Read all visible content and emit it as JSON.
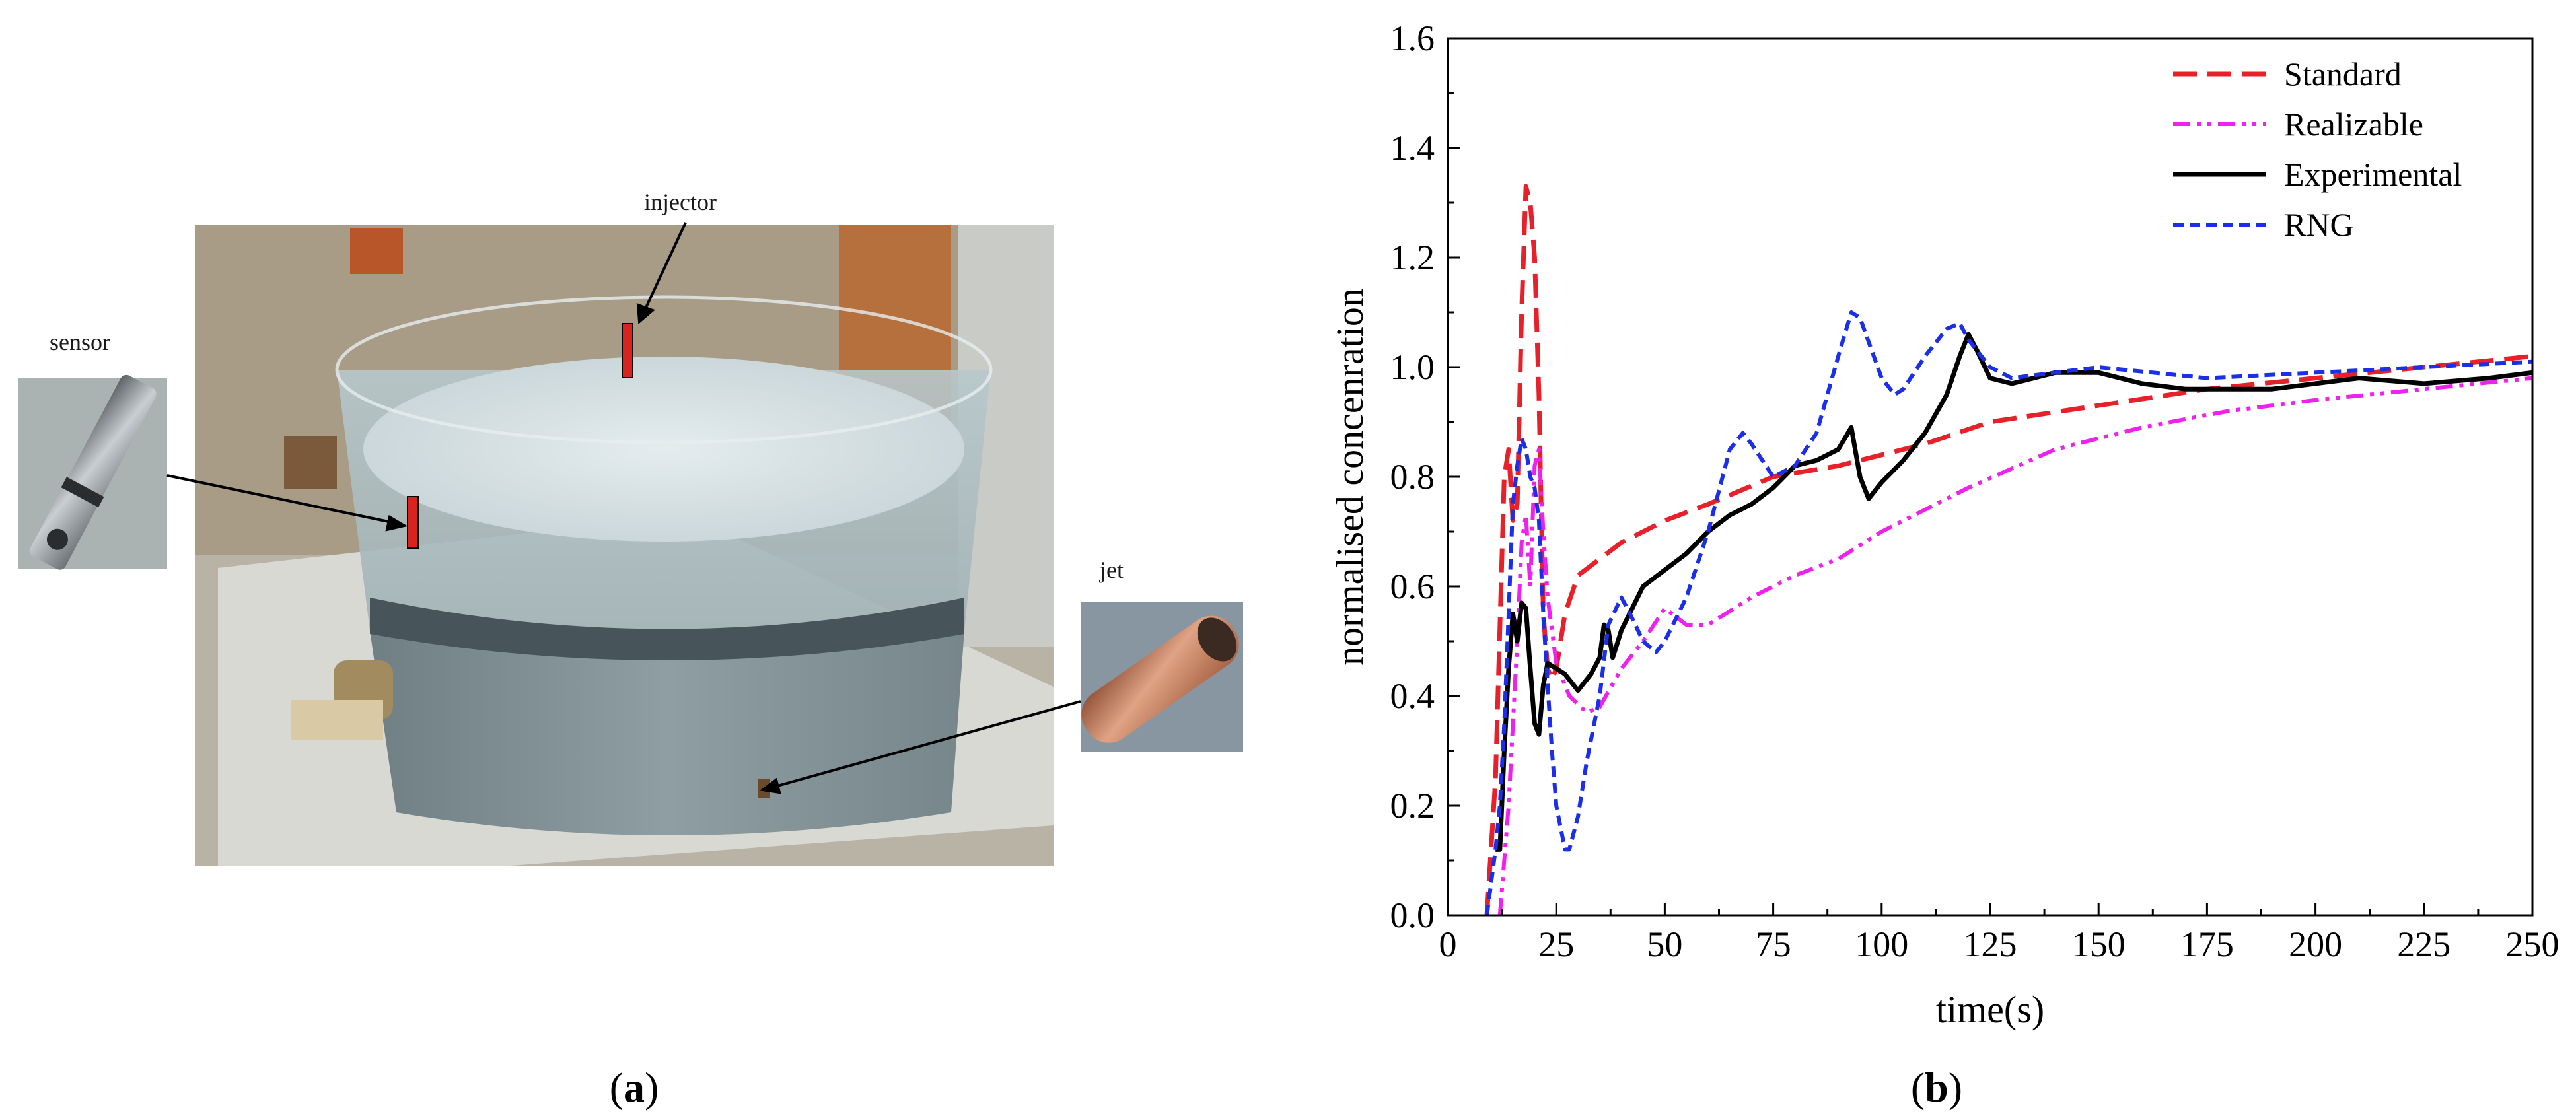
{
  "panel_a": {
    "caption_open": "(",
    "caption_letter": "a",
    "caption_close": ")",
    "labels": {
      "injector": "injector",
      "sensor": "sensor",
      "jet": "jet"
    }
  },
  "panel_b": {
    "caption_open": "(",
    "caption_letter": "b",
    "caption_close": ")"
  },
  "colors": {
    "standard": "#e8202a",
    "realizable": "#ee21ee",
    "experimental": "#000000",
    "rng": "#1c2fe8",
    "marker_red": "#d9231d"
  },
  "chart_data": {
    "type": "line",
    "xlabel": "time(s)",
    "ylabel": "normalised concenration",
    "xlim": [
      0,
      250
    ],
    "ylim": [
      0,
      1.6
    ],
    "xticks": [
      0,
      25,
      50,
      75,
      100,
      125,
      150,
      175,
      200,
      225,
      250
    ],
    "yticks": [
      0.0,
      0.2,
      0.4,
      0.6,
      0.8,
      1.0,
      1.2,
      1.4,
      1.6
    ],
    "ytick_labels": [
      "0.0",
      "0.2",
      "0.4",
      "0.6",
      "0.8",
      "1.0",
      "1.2",
      "1.4",
      "1.6"
    ],
    "grid": false,
    "legend_position": "top-right",
    "series": [
      {
        "name": "Standard",
        "style": "dashed",
        "x": [
          9,
          11,
          13,
          14,
          15,
          16,
          17,
          18,
          19,
          20,
          21,
          22,
          23,
          24,
          25,
          27,
          30,
          35,
          40,
          45,
          50,
          60,
          75,
          90,
          100,
          110,
          125,
          150,
          175,
          200,
          225,
          250
        ],
        "y": [
          0.0,
          0.25,
          0.8,
          0.85,
          0.72,
          0.75,
          1.1,
          1.33,
          1.3,
          1.2,
          0.95,
          0.55,
          0.45,
          0.43,
          0.45,
          0.55,
          0.62,
          0.65,
          0.68,
          0.7,
          0.72,
          0.75,
          0.8,
          0.82,
          0.84,
          0.86,
          0.9,
          0.93,
          0.96,
          0.98,
          1.0,
          1.02
        ]
      },
      {
        "name": "Realizable",
        "style": "dash-dot-dot",
        "x": [
          12,
          14,
          16,
          17,
          18,
          19,
          20,
          21,
          22,
          23,
          25,
          28,
          32,
          35,
          40,
          45,
          50,
          55,
          60,
          70,
          80,
          90,
          100,
          120,
          140,
          160,
          180,
          200,
          225,
          250
        ],
        "y": [
          0.0,
          0.2,
          0.5,
          0.68,
          0.73,
          0.6,
          0.82,
          0.85,
          0.7,
          0.58,
          0.46,
          0.4,
          0.37,
          0.38,
          0.45,
          0.5,
          0.56,
          0.53,
          0.53,
          0.58,
          0.62,
          0.65,
          0.7,
          0.78,
          0.85,
          0.89,
          0.92,
          0.94,
          0.96,
          0.98
        ]
      },
      {
        "name": "Experimental",
        "style": "solid",
        "x": [
          11,
          12,
          13,
          14,
          15,
          16,
          17,
          18,
          19,
          20,
          21,
          22,
          23,
          25,
          27,
          30,
          33,
          35,
          36,
          37,
          38,
          40,
          45,
          50,
          55,
          60,
          65,
          70,
          75,
          80,
          85,
          90,
          93,
          95,
          97,
          100,
          105,
          110,
          115,
          118,
          120,
          122,
          125,
          130,
          140,
          150,
          160,
          170,
          180,
          190,
          200,
          210,
          225,
          240,
          250
        ],
        "y": [
          0.12,
          0.12,
          0.3,
          0.45,
          0.55,
          0.5,
          0.57,
          0.56,
          0.45,
          0.35,
          0.33,
          0.42,
          0.46,
          0.45,
          0.44,
          0.41,
          0.44,
          0.47,
          0.53,
          0.52,
          0.47,
          0.52,
          0.6,
          0.63,
          0.66,
          0.7,
          0.73,
          0.75,
          0.78,
          0.82,
          0.83,
          0.85,
          0.89,
          0.8,
          0.76,
          0.79,
          0.83,
          0.88,
          0.95,
          1.02,
          1.06,
          1.03,
          0.98,
          0.97,
          0.99,
          0.99,
          0.97,
          0.96,
          0.96,
          0.96,
          0.97,
          0.98,
          0.97,
          0.98,
          0.99
        ]
      },
      {
        "name": "RNG",
        "style": "dotted",
        "x": [
          9,
          11,
          12,
          13,
          14,
          15,
          16,
          17,
          18,
          19,
          20,
          21,
          22,
          23,
          24,
          25,
          27,
          28,
          30,
          32,
          35,
          37,
          40,
          42,
          45,
          48,
          50,
          55,
          60,
          65,
          68,
          70,
          75,
          80,
          85,
          90,
          93,
          95,
          100,
          103,
          105,
          110,
          115,
          118,
          120,
          125,
          130,
          140,
          150,
          175,
          200,
          225,
          250
        ],
        "y": [
          0.0,
          0.12,
          0.2,
          0.35,
          0.55,
          0.75,
          0.82,
          0.87,
          0.85,
          0.8,
          0.78,
          0.72,
          0.55,
          0.42,
          0.3,
          0.2,
          0.12,
          0.12,
          0.18,
          0.28,
          0.4,
          0.53,
          0.58,
          0.55,
          0.5,
          0.48,
          0.5,
          0.58,
          0.7,
          0.85,
          0.88,
          0.86,
          0.8,
          0.82,
          0.88,
          1.02,
          1.1,
          1.09,
          0.98,
          0.95,
          0.96,
          1.02,
          1.07,
          1.08,
          1.05,
          1.0,
          0.98,
          0.99,
          1.0,
          0.98,
          0.99,
          1.0,
          1.01
        ]
      }
    ]
  }
}
